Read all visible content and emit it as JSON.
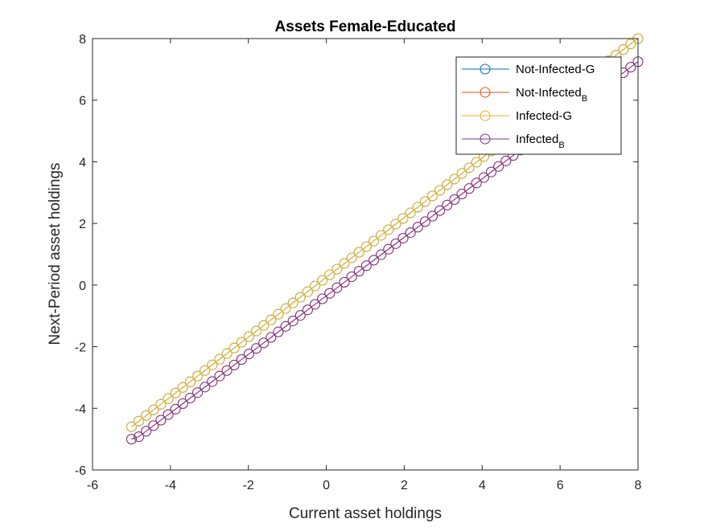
{
  "chart_data": {
    "type": "line",
    "title": "Assets Female-Educated",
    "xlabel": "Current asset holdings",
    "ylabel": "Next-Period asset holdings",
    "xlim": [
      -6,
      8
    ],
    "ylim": [
      -6,
      8
    ],
    "xticks": [
      -6,
      -4,
      -2,
      0,
      2,
      4,
      6,
      8
    ],
    "yticks": [
      -6,
      -4,
      -2,
      0,
      2,
      4,
      6,
      8
    ],
    "xtick_labels": [
      "-6",
      "-4",
      "-2",
      "0",
      "2",
      "4",
      "6",
      "8"
    ],
    "ytick_labels": [
      "-6",
      "-4",
      "-2",
      "0",
      "2",
      "4",
      "6",
      "8"
    ],
    "grid": false,
    "legend_position": "top-right",
    "x_start": -5,
    "x_end": 8,
    "num_points": 70,
    "series": [
      {
        "name": "Not-Infected-G",
        "legend_main": "Not-Infected-G",
        "legend_sub": "",
        "color": "#0072BD",
        "marker": "circle",
        "slope": 0.97,
        "intercept": 0.25,
        "clip_min": -4.6,
        "clip_max": 8.0
      },
      {
        "name": "Not-Infected_B",
        "legend_main": "Not-Infected",
        "legend_sub": "B",
        "color": "#D95319",
        "marker": "circle",
        "slope": 0.95,
        "intercept": -0.35,
        "clip_min": -5.0,
        "clip_max": 7.45
      },
      {
        "name": "Infected-G",
        "legend_main": "Infected-G",
        "legend_sub": "",
        "color": "#EDB120",
        "marker": "circle",
        "slope": 0.97,
        "intercept": 0.25,
        "clip_min": -4.6,
        "clip_max": 8.0
      },
      {
        "name": "Infected_B",
        "legend_main": "Infected",
        "legend_sub": "B",
        "color": "#7E2F8E",
        "marker": "circle",
        "slope": 0.95,
        "intercept": -0.35,
        "clip_min": -5.0,
        "clip_max": 7.45
      }
    ]
  }
}
